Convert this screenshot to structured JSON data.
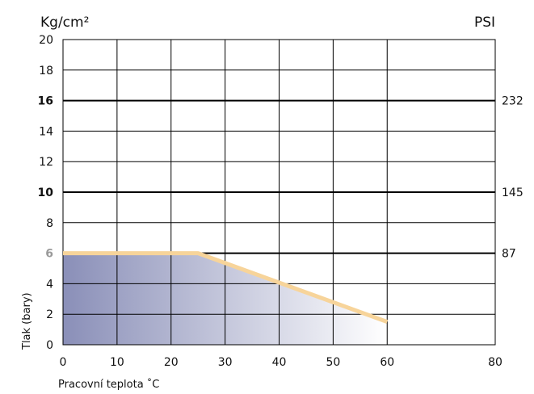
{
  "chart_data": {
    "type": "area",
    "units": {
      "left": "Kg/cm²",
      "right": "PSI"
    },
    "xlabel": "Pracovní teplota ˚C",
    "ylabel": "Tlak (bary)",
    "xlim": [
      0,
      80
    ],
    "ylim": [
      0,
      20
    ],
    "x_ticks": [
      "0",
      "10",
      "20",
      "30",
      "40",
      "50",
      "60",
      "80"
    ],
    "x_tick_values": [
      0,
      10,
      20,
      30,
      40,
      50,
      60,
      80
    ],
    "y_ticks": [
      {
        "value": 0,
        "label": "0",
        "style": "normal"
      },
      {
        "value": 2,
        "label": "2",
        "style": "normal"
      },
      {
        "value": 4,
        "label": "4",
        "style": "normal"
      },
      {
        "value": 6,
        "label": "6",
        "style": "grey-bold"
      },
      {
        "value": 8,
        "label": "8",
        "style": "normal"
      },
      {
        "value": 10,
        "label": "10",
        "style": "bold"
      },
      {
        "value": 12,
        "label": "12",
        "style": "normal"
      },
      {
        "value": 14,
        "label": "14",
        "style": "normal"
      },
      {
        "value": 16,
        "label": "16",
        "style": "bold"
      },
      {
        "value": 18,
        "label": "18",
        "style": "normal"
      },
      {
        "value": 20,
        "label": "20",
        "style": "normal"
      }
    ],
    "right_ticks": [
      {
        "value": 6,
        "label": "87"
      },
      {
        "value": 10,
        "label": "145"
      },
      {
        "value": 16,
        "label": "232"
      }
    ],
    "grid": true,
    "series": [
      {
        "x": [
          0,
          25,
          60
        ],
        "y": [
          6,
          6,
          1.5
        ]
      }
    ],
    "colors": {
      "line": "#f7d49a",
      "fill_dark": "#8a8fb8",
      "fill_light": "#ffffff",
      "grid": "#000000"
    }
  }
}
